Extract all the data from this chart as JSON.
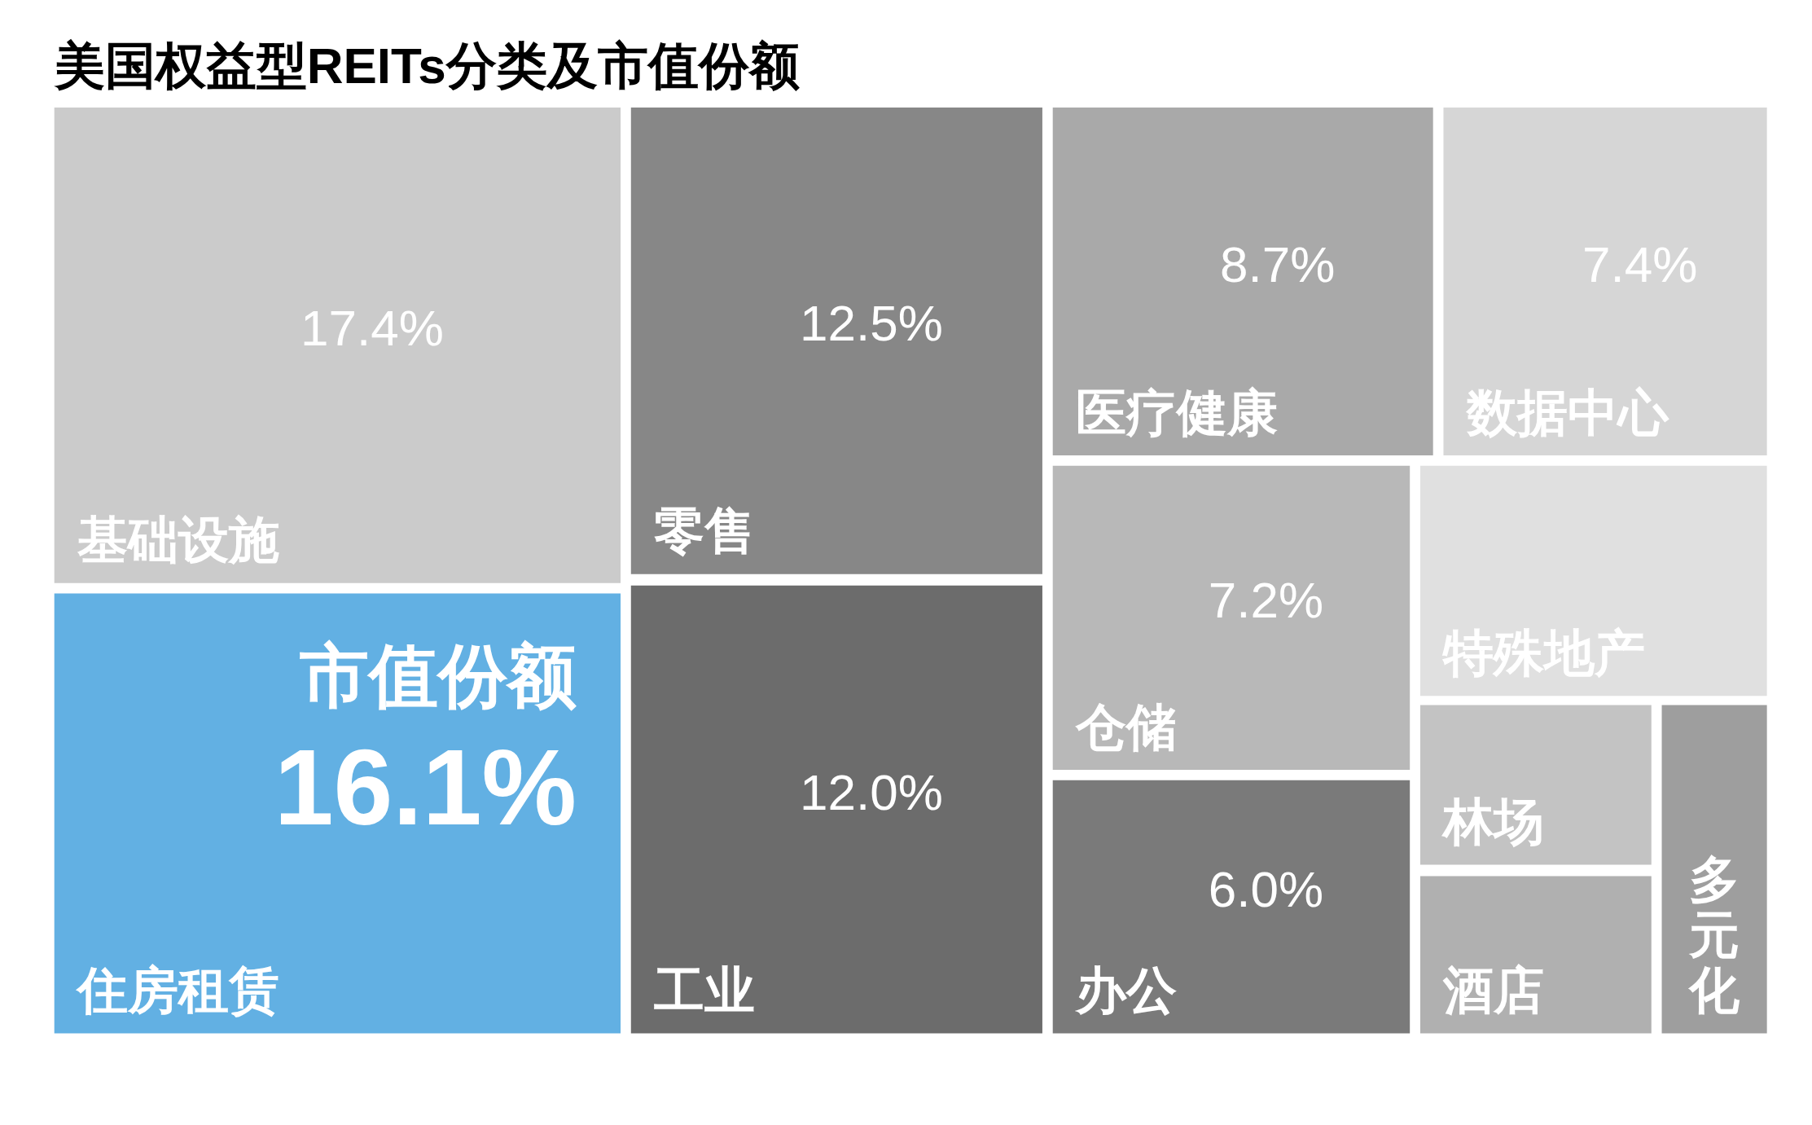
{
  "chart_data": {
    "type": "other",
    "title": "美国权益型REITs分类及市值份额",
    "categories": [
      "基础设施",
      "零售",
      "医疗健康",
      "数据中心",
      "住房租赁",
      "工业",
      "仓储",
      "特殊地产",
      "办公",
      "林场",
      "酒店",
      "多元化"
    ],
    "values": [
      17.4,
      12.5,
      8.7,
      7.4,
      16.1,
      12.0,
      7.2,
      null,
      6.0,
      null,
      null,
      null
    ],
    "value_labels": [
      "17.4%",
      "12.5%",
      "8.7%",
      "7.4%",
      "16.1%",
      "12.0%",
      "7.2%",
      null,
      "6.0%",
      null,
      null,
      null
    ],
    "colors": [
      "#cbcbcb",
      "#878787",
      "#a9a9a9",
      "#d6d6d6",
      "#62b0e3",
      "#6c6c6c",
      "#b8b8b8",
      "#e0e0e0",
      "#7a7a7a",
      "#c3c3c3",
      "#b0b0b0",
      "#9e9e9e"
    ],
    "annotations": [
      {
        "text": "市值份额",
        "x": "住房租赁"
      }
    ]
  }
}
